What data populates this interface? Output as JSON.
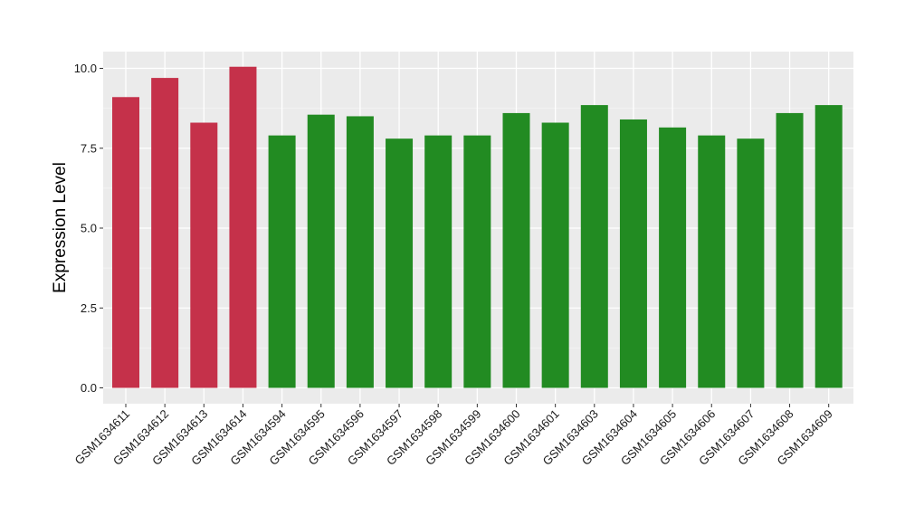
{
  "chart_data": {
    "type": "bar",
    "title": "",
    "xlabel": "",
    "ylabel": "Expression Level",
    "ylim": [
      0,
      10.5
    ],
    "yticks": [
      0.0,
      2.5,
      5.0,
      7.5,
      10.0
    ],
    "ytick_labels": [
      "0.0",
      "2.5",
      "5.0",
      "7.5",
      "10.0"
    ],
    "grid": true,
    "legend": "none",
    "panel_background": "#ebebeb",
    "grid_color": "#ffffff",
    "categories": [
      "GSM1634611",
      "GSM1634612",
      "GSM1634613",
      "GSM1634614",
      "GSM1634594",
      "GSM1634595",
      "GSM1634596",
      "GSM1634597",
      "GSM1634598",
      "GSM1634599",
      "GSM1634600",
      "GSM1634601",
      "GSM1634603",
      "GSM1634604",
      "GSM1634605",
      "GSM1634606",
      "GSM1634607",
      "GSM1634608",
      "GSM1634609"
    ],
    "values": [
      9.1,
      9.7,
      8.3,
      10.05,
      7.9,
      8.55,
      8.5,
      7.8,
      7.9,
      7.9,
      8.6,
      8.3,
      8.85,
      8.4,
      8.15,
      7.9,
      7.8,
      8.6,
      8.85
    ],
    "bar_colors": [
      "#c5314a",
      "#c5314a",
      "#c5314a",
      "#c5314a",
      "#228b22",
      "#228b22",
      "#228b22",
      "#228b22",
      "#228b22",
      "#228b22",
      "#228b22",
      "#228b22",
      "#228b22",
      "#228b22",
      "#228b22",
      "#228b22",
      "#228b22",
      "#228b22",
      "#228b22"
    ]
  }
}
